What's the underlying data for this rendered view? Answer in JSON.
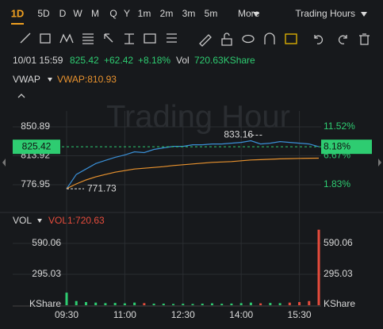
{
  "tabs": [
    "1D",
    "5D",
    "D",
    "W",
    "M",
    "Q",
    "Y",
    "1m",
    "2m",
    "3m",
    "5m",
    "More"
  ],
  "active_tab": 0,
  "session": "Trading Hours",
  "quote": {
    "time": "10/01 15:59",
    "price": 825.42,
    "change": "+62.42",
    "change_pct": "+8.18%",
    "vol_label": "Vol",
    "volume": "720.63KShare"
  },
  "watermark": "Trading Hour",
  "price_chart": {
    "indicator": "VWAP",
    "indicator_value": "VWAP:810.93",
    "ylim": [
      747.57,
      881.28
    ],
    "yticks": [
      850.89,
      813.92,
      776.95
    ],
    "y2lim": [
      -2.02,
      15.5
    ],
    "y2ticks": [
      {
        "value": 11.52,
        "label": "11.52%"
      },
      {
        "value": 6.67,
        "label": "6.67%"
      },
      {
        "value": 1.83,
        "label": "1.83%"
      }
    ],
    "last_pct": {
      "value": 8.18,
      "label": "8.18%"
    },
    "high": 833.16,
    "low": 771.73,
    "x": [
      "09:30",
      "09:45",
      "10:00",
      "10:15",
      "10:30",
      "10:45",
      "11:00",
      "11:15",
      "11:30",
      "11:45",
      "12:00",
      "12:15",
      "12:30",
      "12:45",
      "13:00",
      "13:15",
      "13:30",
      "13:45",
      "14:00",
      "14:15",
      "14:30",
      "14:45",
      "15:00",
      "15:15",
      "15:30",
      "15:45",
      "16:00"
    ],
    "series": [
      {
        "name": "Price",
        "color": "#3a8fd6",
        "values": [
          771.73,
          790,
          797,
          804,
          808,
          812,
          815,
          819,
          818,
          822,
          824,
          826,
          826,
          828,
          828,
          829,
          829,
          830,
          831,
          833.16,
          829,
          830,
          832,
          831,
          830,
          829,
          825.42
        ]
      },
      {
        "name": "VWAP",
        "color": "#e8922e",
        "values": [
          772,
          778,
          783,
          787,
          790,
          793,
          795,
          797,
          798,
          799,
          800,
          801.5,
          802.5,
          803.5,
          804.5,
          805.5,
          806,
          806.5,
          807.5,
          808.5,
          809,
          809.5,
          810,
          810.3,
          810.6,
          810.8,
          810.93
        ]
      }
    ],
    "xticks": [
      "09:30",
      "11:00",
      "12:30",
      "14:00",
      "15:30"
    ]
  },
  "volume_chart": {
    "indicator": "VOL",
    "indicator_value": "VOL1:720.63",
    "ylim": [
      0,
      730
    ],
    "yticks": [
      590.06,
      295.03,
      {
        "value": 0,
        "label": "KShare"
      }
    ],
    "up_color": "#2ecc71",
    "down_color": "#e74c3c",
    "values": [
      120,
      40,
      30,
      25,
      20,
      22,
      18,
      25,
      20,
      15,
      15,
      12,
      14,
      12,
      15,
      18,
      14,
      16,
      20,
      25,
      18,
      22,
      20,
      25,
      30,
      40,
      720.63
    ]
  }
}
